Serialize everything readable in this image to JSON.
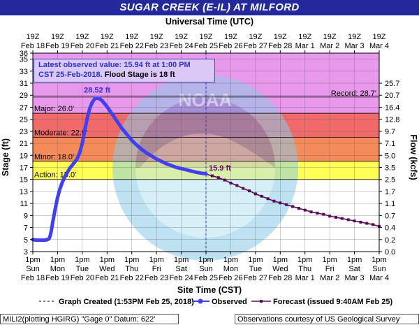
{
  "title": "SUGAR CREEK  (E-IL) AT MILFORD",
  "top_axis_title": "Universal Time (UTC)",
  "bottom_axis_title": "Site Time (CST)",
  "left_axis_title": "Stage (ft)",
  "right_axis_title": "Flow (kcfs)",
  "info_box": {
    "line1": "Latest observed value: 15.94 ft at 1:00 PM",
    "line2_blue": "CST 25-Feb-2018.",
    "line2_black": " Flood Stage is 18 ft"
  },
  "legend": {
    "created": "Graph Created (1:53PM Feb 25, 2018)",
    "observed": "Observed",
    "forecast": "Forecast (issued 9:40AM Feb 25)"
  },
  "footer": {
    "left": "MILI2(plotting HGIRG) \"Gage 0\" Datum: 622'",
    "right": "Observations courtesy of US Geological Survey"
  },
  "watermark_text": "NATIONAL OCEANIC AND ATMOSPHERIC ADMINISTRATION · U.S. DEPARTMENT OF COMMERCE · NOAA",
  "colors": {
    "title_bar": "#23289a",
    "observed": "#4040f0",
    "forecast": "#5a0a5a",
    "record_band": "#e899ec",
    "major_band": "#f06a6a",
    "moderate_band": "#f58b5a",
    "minor_band": "#fbc27c",
    "action_band": "#ffff55"
  },
  "chart_data": {
    "type": "line",
    "ylabel": "Stage (ft)",
    "y2label": "Flow (kcfs)",
    "ylim": [
      3,
      36
    ],
    "x_range_days": [
      "Feb 18 1pm",
      "Mar 4 1pm"
    ],
    "yticks": [
      3,
      5,
      7,
      9,
      11,
      13,
      15,
      17,
      19,
      21,
      23,
      25,
      27,
      29,
      31,
      33,
      35,
      36
    ],
    "flow_ticks": [
      {
        "stage": 31,
        "label": "25.7"
      },
      {
        "stage": 29,
        "label": "20.7"
      },
      {
        "stage": 27,
        "label": "16.4"
      },
      {
        "stage": 25,
        "label": "12.8"
      },
      {
        "stage": 23,
        "label": "9.7"
      },
      {
        "stage": 21,
        "label": "7.1"
      },
      {
        "stage": 19,
        "label": "5.0"
      },
      {
        "stage": 17,
        "label": "3.5"
      },
      {
        "stage": 15,
        "label": "2.5"
      },
      {
        "stage": 13,
        "label": "1.7"
      },
      {
        "stage": 11,
        "label": "1.1"
      },
      {
        "stage": 9,
        "label": "0.7"
      },
      {
        "stage": 7,
        "label": "0.4"
      },
      {
        "stage": 5,
        "label": "0.2"
      },
      {
        "stage": 3,
        "label": "0.0"
      }
    ],
    "utc_labels": [
      [
        "19Z",
        "Feb 18"
      ],
      [
        "19Z",
        "Feb 19"
      ],
      [
        "19Z",
        "Feb 20"
      ],
      [
        "19Z",
        "Feb 21"
      ],
      [
        "19Z",
        "Feb 22"
      ],
      [
        "19Z",
        "Feb 23"
      ],
      [
        "19Z",
        "Feb 24"
      ],
      [
        "19Z",
        "Feb 25"
      ],
      [
        "19Z",
        "Feb 26"
      ],
      [
        "19Z",
        "Feb 27"
      ],
      [
        "19Z",
        "Feb 28"
      ],
      [
        "19Z",
        "Mar 1"
      ],
      [
        "19Z",
        "Mar 2"
      ],
      [
        "19Z",
        "Mar 3"
      ],
      [
        "19Z",
        "Mar 4"
      ]
    ],
    "site_labels": [
      [
        "1pm",
        "Sun",
        "Feb 18"
      ],
      [
        "1pm",
        "Mon",
        "Feb 19"
      ],
      [
        "1pm",
        "Tue",
        "Feb 20"
      ],
      [
        "1pm",
        "Wed",
        "Feb 21"
      ],
      [
        "1pm",
        "Thu",
        "Feb 22"
      ],
      [
        "1pm",
        "Fri",
        "Feb 23"
      ],
      [
        "1pm",
        "Sat",
        "Feb 24"
      ],
      [
        "1pm",
        "Sun",
        "Feb 25"
      ],
      [
        "1pm",
        "Mon",
        "Feb 26"
      ],
      [
        "1pm",
        "Tue",
        "Feb 27"
      ],
      [
        "1pm",
        "Wed",
        "Feb 28"
      ],
      [
        "1pm",
        "Thu",
        "Mar 1"
      ],
      [
        "1pm",
        "Fri",
        "Mar 2"
      ],
      [
        "1pm",
        "Sat",
        "Mar 3"
      ],
      [
        "1pm",
        "Sun",
        "Mar 4"
      ]
    ],
    "flood_categories": [
      {
        "name": "Record",
        "stage": 28.7,
        "label": "Record: 28.7'"
      },
      {
        "name": "Major",
        "stage": 26.0,
        "label": "Major: 26.0'"
      },
      {
        "name": "Moderate",
        "stage": 22.0,
        "label": "Moderate: 22.0'"
      },
      {
        "name": "Minor",
        "stage": 18.0,
        "label": "Minor: 18.0'"
      },
      {
        "name": "Action",
        "stage": 15.0,
        "label": "Action: 15.0'"
      }
    ],
    "series": [
      {
        "name": "Observed",
        "x_days": [
          0,
          0.15,
          0.3,
          0.45,
          0.55,
          0.65,
          0.7,
          0.75,
          0.8,
          0.9,
          1.0,
          1.1,
          1.2,
          1.3,
          1.4,
          1.5,
          1.6,
          1.7,
          1.8,
          1.9,
          2.0,
          2.1,
          2.2,
          2.3,
          2.4,
          2.5,
          2.6,
          2.7,
          2.8,
          2.9,
          3.0,
          3.1,
          3.2,
          3.3,
          3.4,
          3.5,
          3.6,
          3.7,
          3.8,
          3.9,
          4.0,
          4.2,
          4.4,
          4.6,
          4.8,
          5.0,
          5.2,
          5.4,
          5.6,
          5.8,
          6.0,
          6.2,
          6.4,
          6.6,
          6.8,
          7.0
        ],
        "y_ft": [
          5.0,
          4.9,
          4.9,
          4.9,
          4.95,
          5.1,
          5.6,
          6.5,
          7.8,
          10.0,
          12.0,
          13.5,
          14.6,
          15.5,
          16.2,
          16.9,
          17.4,
          17.9,
          18.5,
          19.5,
          21.0,
          23.2,
          25.2,
          26.8,
          27.8,
          28.4,
          28.52,
          28.4,
          28.1,
          27.6,
          27.1,
          26.5,
          25.9,
          25.3,
          24.7,
          24.1,
          23.5,
          23.0,
          22.5,
          22.0,
          21.5,
          20.7,
          20.0,
          19.4,
          18.9,
          18.4,
          18.0,
          17.6,
          17.3,
          17.0,
          16.8,
          16.6,
          16.4,
          16.2,
          16.05,
          15.94
        ]
      },
      {
        "name": "Forecast",
        "x_days": [
          7.0,
          7.25,
          7.5,
          7.75,
          8.0,
          8.25,
          8.5,
          8.75,
          9.0,
          9.25,
          9.5,
          9.75,
          10.0,
          10.25,
          10.5,
          10.75,
          11.0,
          11.25,
          11.5,
          11.75,
          12.0,
          12.25,
          12.5,
          12.75,
          13.0,
          13.25,
          13.5,
          13.75,
          14.0
        ],
        "y_ft": [
          15.9,
          15.6,
          15.3,
          14.9,
          14.4,
          14.0,
          13.5,
          13.1,
          12.6,
          12.2,
          11.8,
          11.4,
          11.1,
          10.8,
          10.5,
          10.2,
          9.9,
          9.6,
          9.4,
          9.2,
          8.9,
          8.7,
          8.5,
          8.3,
          8.1,
          7.9,
          7.7,
          7.5,
          7.2
        ]
      }
    ],
    "annotations": [
      {
        "text": "28.52 ft",
        "x_day": 2.6,
        "y_ft": 28.52
      },
      {
        "text": "15.9 ft",
        "x_day": 7.0,
        "y_ft": 15.9
      }
    ],
    "current_time_day": 7.0,
    "grid": true
  }
}
